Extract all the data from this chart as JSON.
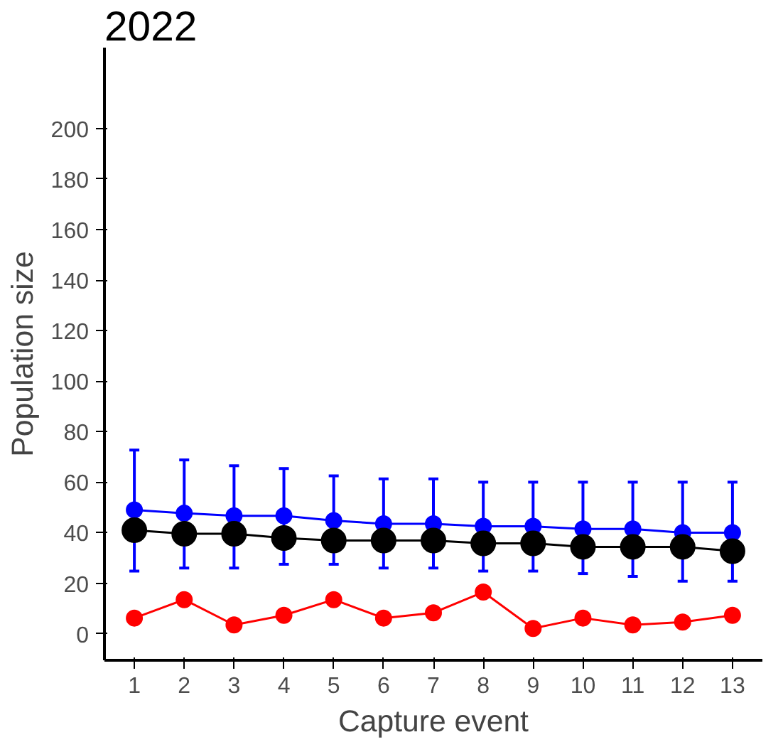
{
  "chart_data": {
    "type": "line",
    "title": "2022",
    "xlabel": "Capture event",
    "ylabel": "Population size",
    "x": [
      1,
      2,
      3,
      4,
      5,
      6,
      7,
      8,
      9,
      10,
      11,
      12,
      13
    ],
    "xlim": [
      0.4,
      13.6
    ],
    "xticks": [
      1,
      2,
      3,
      4,
      5,
      6,
      7,
      8,
      9,
      10,
      11,
      12,
      13
    ],
    "ylim": [
      -10.5,
      232
    ],
    "yticks": [
      0,
      20,
      40,
      60,
      80,
      100,
      120,
      140,
      160,
      180,
      200
    ],
    "grid": false,
    "marker": "circle",
    "line_style": "solid",
    "series": [
      {
        "color": "#0000ff",
        "values": [
          49,
          47.7,
          46.7,
          46.7,
          44.8,
          43.5,
          43.5,
          42.5,
          42.5,
          41.5,
          41.5,
          40,
          40
        ],
        "errors": [
          [
            24.8,
            72.7
          ],
          [
            26,
            68.8
          ],
          [
            26,
            66.5
          ],
          [
            27.5,
            65.4
          ],
          [
            27.5,
            62.5
          ],
          [
            26,
            61.3
          ],
          [
            26,
            61.3
          ],
          [
            24.8,
            60
          ],
          [
            24.8,
            60
          ],
          [
            23.8,
            60
          ],
          [
            22.7,
            60
          ],
          [
            20.8,
            60
          ],
          [
            20.8,
            60
          ]
        ]
      },
      {
        "color": "#000000",
        "values": [
          41,
          39.6,
          39.6,
          37.9,
          36.9,
          36.9,
          36.9,
          35.8,
          35.8,
          34.4,
          34.4,
          34.4,
          32.7
        ]
      },
      {
        "color": "#ff0000",
        "values": [
          6.2,
          13.5,
          3.5,
          7.3,
          13.5,
          6.2,
          8.3,
          16.5,
          2.1,
          6.2,
          3.5,
          4.6,
          7.3
        ]
      }
    ]
  }
}
